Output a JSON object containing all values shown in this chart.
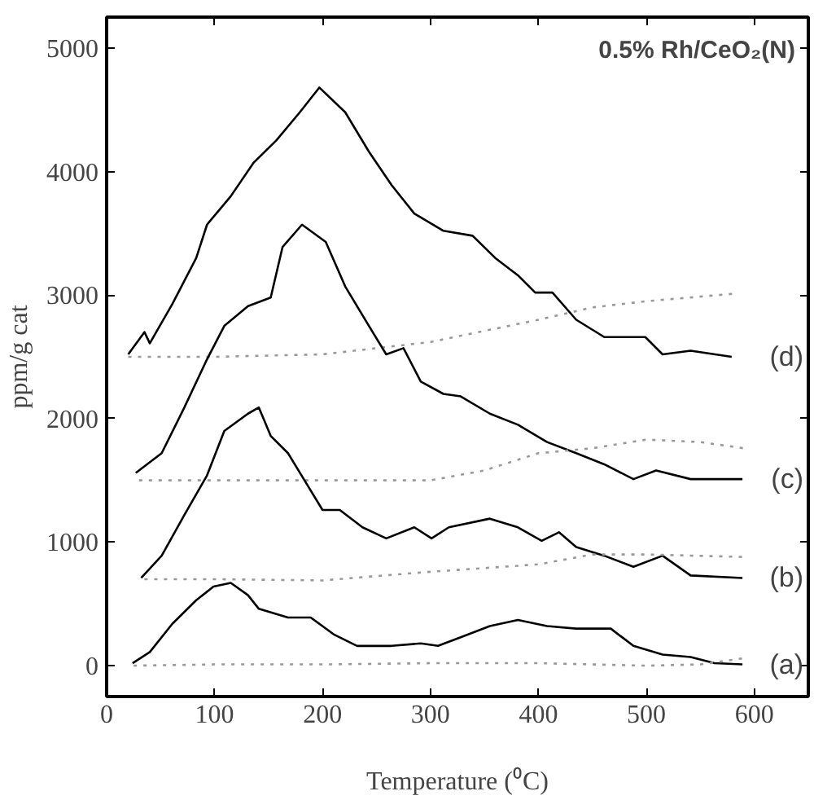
{
  "chart_data": {
    "type": "line",
    "title": "0.5% Rh/CeO₂(N)",
    "xlabel": "Temperature (⁰C)",
    "ylabel": "ppm/g cat",
    "xlim": [
      0,
      650
    ],
    "ylim": [
      -250,
      5250
    ],
    "xticks": [
      0,
      100,
      200,
      300,
      400,
      500,
      600
    ],
    "yticks": [
      0,
      1000,
      2000,
      3000,
      4000,
      5000
    ],
    "grid": false,
    "series": [
      {
        "name": "(d)",
        "color": "#000000",
        "line_style": "solid",
        "x": [
          20,
          35,
          40,
          61,
          83,
          93,
          115,
          136,
          157,
          179,
          197,
          221,
          243,
          264,
          285,
          312,
          339,
          360,
          381,
          397,
          413,
          435,
          461,
          499,
          515,
          541,
          579
        ],
        "values": [
          2520,
          2700,
          2610,
          2930,
          3300,
          3570,
          3800,
          4070,
          4250,
          4480,
          4680,
          4480,
          4160,
          3890,
          3660,
          3520,
          3480,
          3300,
          3160,
          3020,
          3020,
          2800,
          2660,
          2660,
          2520,
          2550,
          2500
        ]
      },
      {
        "color": "#999999",
        "line_style": "dotted",
        "x": [
          20,
          100,
          200,
          300,
          400,
          450,
          500,
          580
        ],
        "values": [
          2500,
          2500,
          2520,
          2620,
          2800,
          2900,
          2950,
          3010
        ]
      },
      {
        "name": "(c)",
        "color": "#000000",
        "line_style": "solid",
        "x": [
          27,
          51,
          72,
          93,
          109,
          131,
          152,
          163,
          181,
          203,
          221,
          243,
          259,
          275,
          291,
          312,
          328,
          355,
          381,
          408,
          435,
          461,
          488,
          509,
          541,
          589
        ],
        "values": [
          1560,
          1720,
          2090,
          2480,
          2750,
          2910,
          2980,
          3390,
          3570,
          3430,
          3070,
          2750,
          2520,
          2570,
          2300,
          2200,
          2180,
          2040,
          1950,
          1810,
          1720,
          1630,
          1510,
          1580,
          1510,
          1510
        ]
      },
      {
        "color": "#999999",
        "line_style": "dotted",
        "x": [
          30,
          100,
          200,
          300,
          350,
          400,
          450,
          500,
          550,
          590
        ],
        "values": [
          1500,
          1500,
          1500,
          1500,
          1580,
          1720,
          1760,
          1830,
          1810,
          1760
        ]
      },
      {
        "name": "(b)",
        "color": "#000000",
        "line_style": "solid",
        "x": [
          32,
          51,
          72,
          93,
          109,
          131,
          141,
          152,
          168,
          184,
          200,
          216,
          237,
          259,
          285,
          301,
          317,
          355,
          381,
          403,
          419,
          435,
          461,
          488,
          515,
          541,
          589
        ],
        "values": [
          710,
          890,
          1220,
          1540,
          1900,
          2040,
          2090,
          1860,
          1720,
          1490,
          1260,
          1260,
          1120,
          1030,
          1120,
          1030,
          1120,
          1190,
          1120,
          1010,
          1080,
          960,
          890,
          800,
          890,
          730,
          710
        ]
      },
      {
        "color": "#999999",
        "line_style": "dotted",
        "x": [
          35,
          100,
          200,
          300,
          400,
          450,
          500,
          590
        ],
        "values": [
          700,
          700,
          690,
          760,
          820,
          900,
          900,
          880
        ]
      },
      {
        "name": "(a)",
        "color": "#000000",
        "line_style": "solid",
        "x": [
          24,
          40,
          61,
          83,
          99,
          115,
          131,
          141,
          168,
          189,
          211,
          232,
          264,
          291,
          307,
          328,
          355,
          381,
          408,
          435,
          467,
          488,
          515,
          541,
          563,
          589
        ],
        "values": [
          20,
          110,
          340,
          530,
          640,
          670,
          570,
          460,
          390,
          390,
          250,
          160,
          160,
          180,
          160,
          230,
          320,
          370,
          320,
          300,
          300,
          160,
          90,
          70,
          20,
          10
        ]
      },
      {
        "color": "#999999",
        "line_style": "dotted",
        "x": [
          25,
          100,
          200,
          300,
          400,
          500,
          550,
          590
        ],
        "values": [
          0,
          10,
          10,
          20,
          20,
          0,
          10,
          60
        ]
      }
    ]
  }
}
